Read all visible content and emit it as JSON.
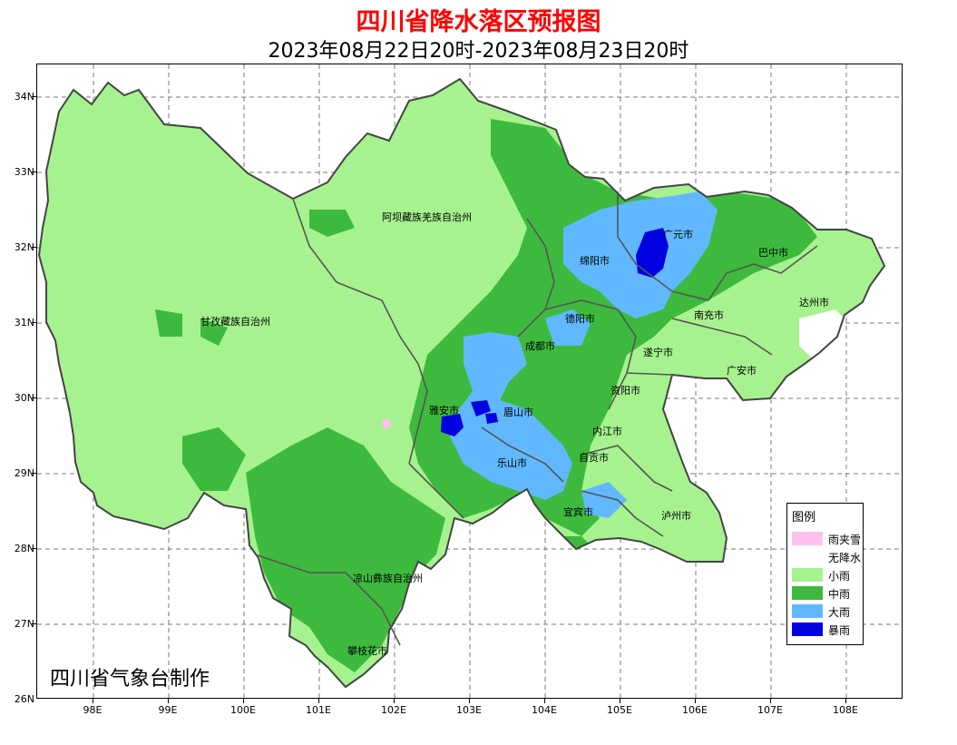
{
  "title": "四川省降水落区预报图",
  "subtitle": "2023年08月22日20时-2023年08月23日20时",
  "credit": "四川省气象台制作",
  "y_ticks": [
    "34N",
    "33N",
    "32N",
    "31N",
    "30N",
    "29N",
    "28N",
    "27N",
    "26N"
  ],
  "x_ticks": [
    "98E",
    "99E",
    "100E",
    "101E",
    "102E",
    "103E",
    "104E",
    "105E",
    "106E",
    "107E",
    "108E"
  ],
  "legend": {
    "title": "图例",
    "items": [
      {
        "label": "雨夹雪",
        "color": "#ffc0f0"
      },
      {
        "label": "无降水",
        "color": "#ffffff"
      },
      {
        "label": "小雨",
        "color": "#a6f28f"
      },
      {
        "label": "中雨",
        "color": "#3dba3d"
      },
      {
        "label": "大雨",
        "color": "#61b8ff"
      },
      {
        "label": "暴雨",
        "color": "#0000e1"
      }
    ]
  },
  "regions": [
    "阿坝藏族羌族自治州",
    "甘孜藏族自治州",
    "凉山彝族自治州",
    "攀枝花市",
    "雅安市",
    "眉山市",
    "乐山市",
    "成都市",
    "德阳市",
    "绵阳市",
    "广元市",
    "巴中市",
    "达州市",
    "南充市",
    "遂宁市",
    "广安市",
    "资阳市",
    "内江市",
    "自贡市",
    "宜宾市",
    "泸州市"
  ],
  "colors": {
    "no_rain": "#ffffff",
    "light": "#a6f28f",
    "moderate": "#3dba3d",
    "heavy": "#61b8ff",
    "rainstorm": "#0000e1",
    "sleet": "#ffc0f0",
    "border": "#444444"
  }
}
